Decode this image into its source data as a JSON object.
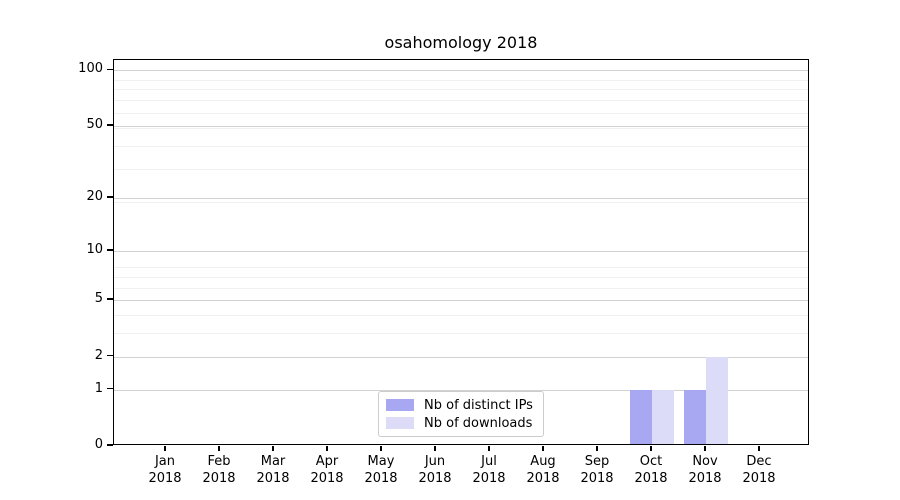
{
  "chart_data": {
    "type": "bar",
    "title": "osahomology 2018",
    "categories": [
      "Jan",
      "Feb",
      "Mar",
      "Apr",
      "May",
      "Jun",
      "Jul",
      "Aug",
      "Sep",
      "Oct",
      "Nov",
      "Dec"
    ],
    "category_year": "2018",
    "series": [
      {
        "name": "Nb of distinct IPs",
        "color": "#a8a8f2",
        "values": [
          0,
          0,
          0,
          0,
          0,
          0,
          0,
          0,
          0,
          1,
          1,
          0
        ]
      },
      {
        "name": "Nb of downloads",
        "color": "#dcdcf9",
        "values": [
          0,
          0,
          0,
          0,
          0,
          0,
          0,
          0,
          0,
          1,
          2,
          0
        ]
      }
    ],
    "xlabel": "",
    "ylabel": "",
    "yscale": "log1p",
    "ylim": [
      0,
      113
    ],
    "y_ticks": [
      0,
      1,
      2,
      5,
      10,
      20,
      50,
      100
    ],
    "y_minor_gridlines": [
      1,
      2,
      3,
      4,
      5,
      6,
      7,
      8,
      19,
      29,
      39,
      49,
      59,
      69,
      79,
      89
    ],
    "grid": true,
    "legend_position": "lower center",
    "colors": {
      "spine": "#000000",
      "grid_major": "#d2d2d2",
      "grid_minor": "#f0f0f0",
      "background": "#ffffff"
    }
  }
}
